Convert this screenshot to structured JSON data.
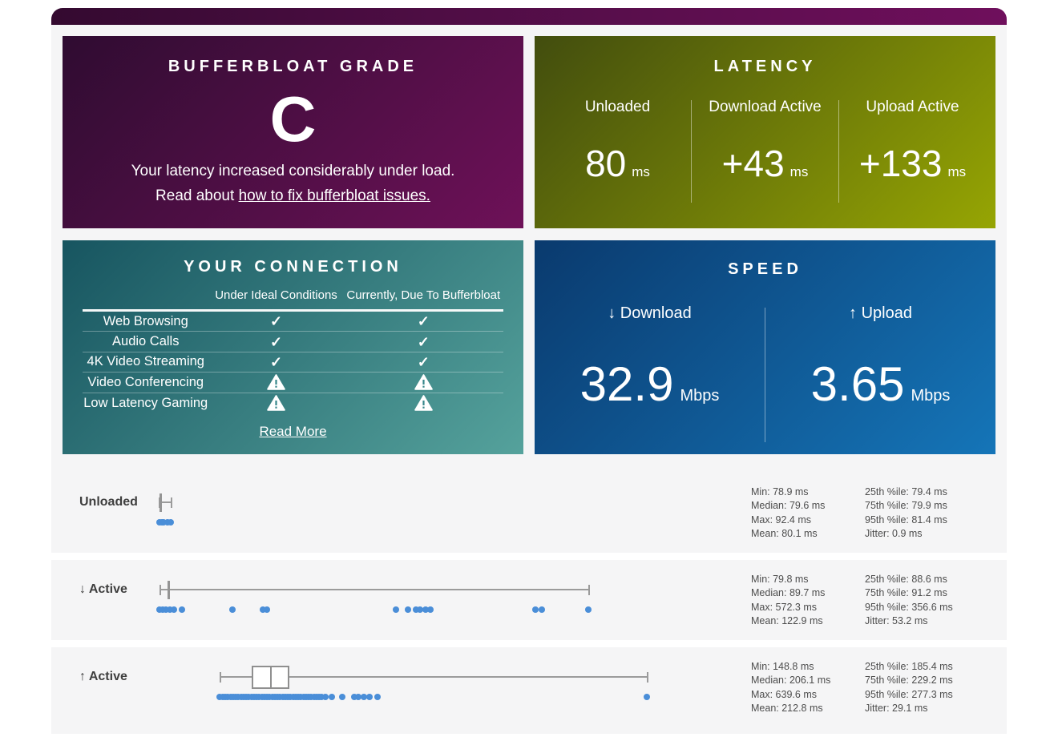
{
  "cards": {
    "grade": {
      "title": "BUFFERBLOAT GRADE",
      "grade": "C",
      "description": "Your latency increased considerably under load.",
      "read_prefix": "Read about ",
      "link_text": "how to fix bufferbloat issues."
    },
    "latency": {
      "title": "LATENCY",
      "columns": [
        {
          "label": "Unloaded",
          "value": "80",
          "unit": "ms"
        },
        {
          "label": "Download Active",
          "value": "+43",
          "unit": "ms"
        },
        {
          "label": "Upload Active",
          "value": "+133",
          "unit": "ms"
        }
      ]
    },
    "connection": {
      "title": "YOUR CONNECTION",
      "col_headers": [
        "Under Ideal Conditions",
        "Currently, Due To Bufferbloat"
      ],
      "rows": [
        {
          "label": "Web Browsing",
          "ideal": "check",
          "current": "check"
        },
        {
          "label": "Audio Calls",
          "ideal": "check",
          "current": "check"
        },
        {
          "label": "4K Video Streaming",
          "ideal": "check",
          "current": "check"
        },
        {
          "label": "Video Conferencing",
          "ideal": "warning",
          "current": "warning"
        },
        {
          "label": "Low Latency Gaming",
          "ideal": "warning",
          "current": "warning"
        }
      ],
      "read_more": "Read More"
    },
    "speed": {
      "title": "SPEED",
      "columns": [
        {
          "arrow": "↓",
          "label": "Download",
          "value": "32.9",
          "unit": "Mbps"
        },
        {
          "arrow": "↑",
          "label": "Upload",
          "value": "3.65",
          "unit": "Mbps"
        }
      ]
    }
  },
  "chart_data": {
    "type": "boxplot-with-dots",
    "unit": "ms",
    "axis": {
      "min_ms": 61,
      "max_ms": 743
    },
    "stat_labels": {
      "min": "Min",
      "median": "Median",
      "max": "Max",
      "mean": "Mean",
      "p25": "25th %ile",
      "p75": "75th %ile",
      "p95": "95th %ile",
      "jitter": "Jitter"
    },
    "stat_columns": [
      [
        "min",
        "median",
        "max",
        "mean"
      ],
      [
        "p25",
        "p75",
        "p95",
        "jitter"
      ]
    ],
    "rows": [
      {
        "label": "Unloaded",
        "box_style": "filled",
        "box": {
          "min": 78.9,
          "q1": 79.4,
          "median": 79.6,
          "q3": 79.9,
          "max": 92.4
        },
        "samples_ms": [
          79.5,
          82,
          84.5,
          89,
          92.4
        ],
        "stats": {
          "min": "78.9 ms",
          "median": "79.6 ms",
          "max": "92.4 ms",
          "mean": "80.1 ms",
          "p25": "79.4 ms",
          "p75": "79.9 ms",
          "p95": "81.4 ms",
          "jitter": "0.9 ms"
        }
      },
      {
        "label": "↓ Active",
        "box_style": "filled",
        "box": {
          "min": 79.8,
          "q1": 88.6,
          "median": 89.7,
          "q3": 91.2,
          "max": 572.3
        },
        "samples_ms": [
          79.8,
          83,
          87,
          91,
          96,
          105,
          163,
          198,
          203,
          351,
          365,
          374,
          379,
          385,
          391,
          512,
          519,
          572.3
        ],
        "stats": {
          "min": "79.8 ms",
          "median": "89.7 ms",
          "max": "572.3 ms",
          "mean": "122.9 ms",
          "p25": "88.6 ms",
          "p75": "91.2 ms",
          "p95": "356.6 ms",
          "jitter": "53.2 ms"
        }
      },
      {
        "label": "↑ Active",
        "box_style": "open",
        "box": {
          "min": 148.8,
          "q1": 185.4,
          "median": 206.1,
          "q3": 229.2,
          "max": 639.6
        },
        "samples_ms": [
          148.8,
          152,
          155,
          158,
          161,
          164,
          167,
          170,
          173,
          176,
          179,
          182,
          185,
          188,
          191,
          194,
          197,
          200,
          203,
          206,
          209,
          212,
          215,
          218,
          221,
          224,
          227,
          230,
          233,
          236,
          239,
          242,
          245,
          248,
          251,
          254,
          257,
          260,
          263,
          266,
          270,
          278,
          290,
          303,
          308,
          314,
          321,
          330,
          639.6
        ],
        "stats": {
          "min": "148.8 ms",
          "median": "206.1 ms",
          "max": "639.6 ms",
          "mean": "212.8 ms",
          "p25": "185.4 ms",
          "p75": "229.2 ms",
          "p95": "277.3 ms",
          "jitter": "29.1 ms"
        }
      }
    ]
  }
}
